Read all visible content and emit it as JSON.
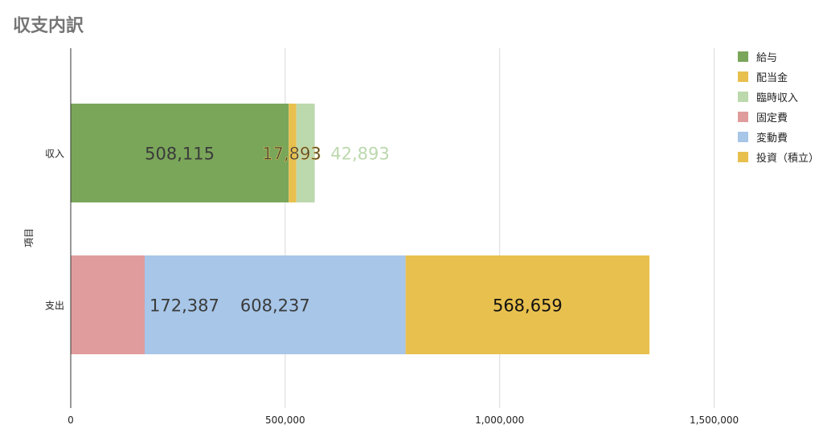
{
  "chart_data": {
    "type": "bar",
    "orientation": "horizontal",
    "stacked": true,
    "title": "収支内訳",
    "ylabel": "項目",
    "xlabel": "",
    "xlim": [
      0,
      1750000
    ],
    "x_ticks": [
      0,
      500000,
      1000000,
      1500000
    ],
    "x_tick_labels": [
      "0",
      "500,000",
      "1,000,000",
      "1,500,000"
    ],
    "grid": "vertical",
    "legend_position": "right",
    "categories": [
      "収入",
      "支出"
    ],
    "series": [
      {
        "name": "給与",
        "color": "#7aa65a",
        "values": [
          508115,
          null
        ],
        "label_color": "#3b3b3b"
      },
      {
        "name": "配当金",
        "color": "#e8c04e",
        "values": [
          17893,
          null
        ],
        "label_color": "#3b3b3b"
      },
      {
        "name": "臨時収入",
        "color": "#bcd8ad",
        "values": [
          42893,
          null
        ],
        "label_color": "#bcd8ad"
      },
      {
        "name": "固定費",
        "color": "#e09c9c",
        "values": [
          null,
          172387
        ],
        "label_color": "#3b3b3b"
      },
      {
        "name": "変動費",
        "color": "#a7c6e8",
        "values": [
          null,
          608237
        ],
        "label_color": "#3b3b3b"
      },
      {
        "name": "投資（積立）",
        "color": "#e8c04e",
        "values": [
          null,
          568659
        ],
        "label_color": "#111111"
      }
    ],
    "data_labels": {
      "収入": [
        "508,115",
        "17,893",
        "42,893"
      ],
      "支出": [
        "172,387",
        "608,237",
        "568,659"
      ]
    }
  }
}
